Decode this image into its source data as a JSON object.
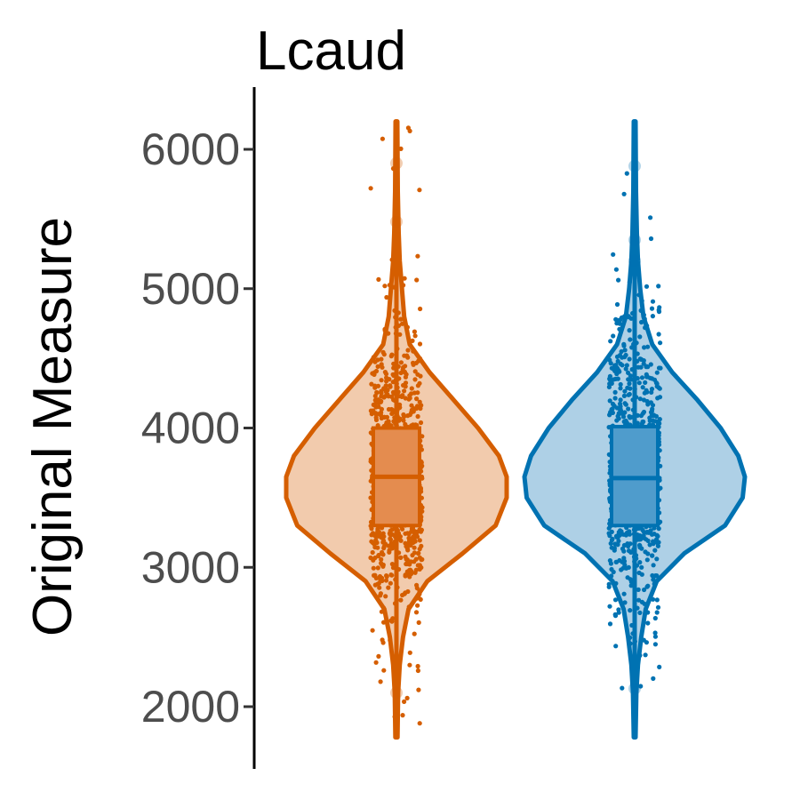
{
  "chart_data": {
    "type": "violin",
    "title": "Lcaud",
    "xlabel": "",
    "ylabel": "Original Measure",
    "ylim": [
      1750,
      6350
    ],
    "yticks": [
      2000,
      3000,
      4000,
      5000,
      6000
    ],
    "grid": false,
    "legend": "none",
    "series": [
      {
        "color": "#d55e00",
        "fill": "#f2cbad",
        "box_fill": "#e48c4f",
        "min": 1780,
        "max": 6200,
        "q1": 3300,
        "median": 3650,
        "q3": 4000,
        "outliers": [
          5900,
          5480,
          2100
        ],
        "density": [
          [
            1780,
            0.01
          ],
          [
            2100,
            0.015
          ],
          [
            2300,
            0.03
          ],
          [
            2500,
            0.06
          ],
          [
            2700,
            0.11
          ],
          [
            2900,
            0.28
          ],
          [
            3100,
            0.6
          ],
          [
            3300,
            0.9
          ],
          [
            3500,
            1.0
          ],
          [
            3650,
            1.0
          ],
          [
            3800,
            0.93
          ],
          [
            4000,
            0.74
          ],
          [
            4200,
            0.52
          ],
          [
            4400,
            0.3
          ],
          [
            4600,
            0.12
          ],
          [
            4800,
            0.07
          ],
          [
            5000,
            0.05
          ],
          [
            5200,
            0.03
          ],
          [
            5400,
            0.02
          ],
          [
            5700,
            0.012
          ],
          [
            6200,
            0.008
          ]
        ]
      },
      {
        "color": "#0072b2",
        "fill": "#aed0e6",
        "box_fill": "#4f9ccc",
        "min": 1780,
        "max": 6200,
        "q1": 3300,
        "median": 3640,
        "q3": 4010,
        "outliers": [
          5880,
          5350,
          5200,
          2130
        ],
        "density": [
          [
            1780,
            0.008
          ],
          [
            2100,
            0.015
          ],
          [
            2300,
            0.03
          ],
          [
            2500,
            0.06
          ],
          [
            2700,
            0.1
          ],
          [
            2900,
            0.2
          ],
          [
            3100,
            0.45
          ],
          [
            3300,
            0.82
          ],
          [
            3500,
            0.98
          ],
          [
            3650,
            1.0
          ],
          [
            3800,
            0.94
          ],
          [
            4000,
            0.78
          ],
          [
            4200,
            0.57
          ],
          [
            4400,
            0.34
          ],
          [
            4600,
            0.16
          ],
          [
            4800,
            0.08
          ],
          [
            5000,
            0.05
          ],
          [
            5200,
            0.03
          ],
          [
            5400,
            0.02
          ],
          [
            5700,
            0.012
          ],
          [
            6200,
            0.008
          ]
        ]
      }
    ]
  }
}
